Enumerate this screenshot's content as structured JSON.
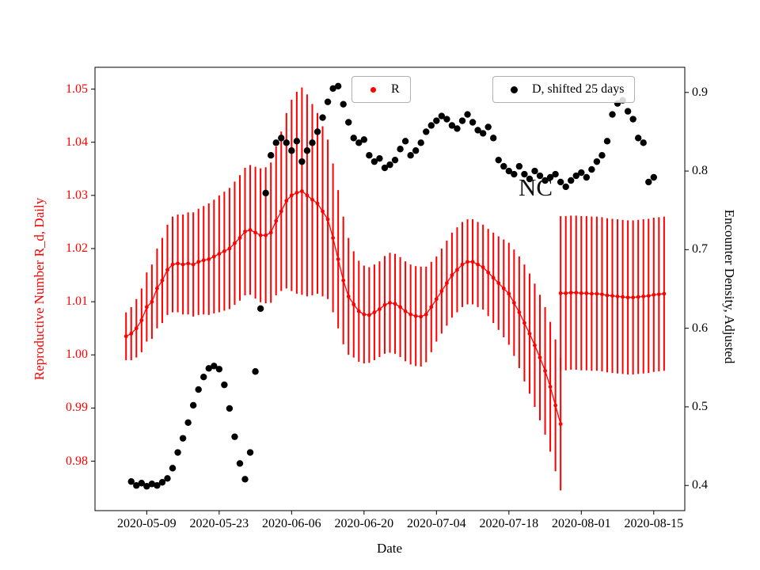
{
  "figure": {
    "background": "#ffffff"
  },
  "labels": {
    "x_axis": "Date",
    "y_left": "Reproductive Number R_d, Daily",
    "y_right": "Encounter Density, Adjusted"
  },
  "annotation": {
    "text": "NC"
  },
  "legends": [
    {
      "label": "R",
      "marker_color": "#ff0000"
    },
    {
      "label": "D, shifted 25 days",
      "marker_color": "#000000"
    }
  ],
  "chart_data": {
    "type": "scatter",
    "title": "",
    "xlabel": "Date",
    "ylabel_left": "Reproductive Number R_d, Daily",
    "ylabel_right": "Encounter Density, Adjusted",
    "grid": false,
    "legend_position": "upper center, two boxes",
    "x_ticks": [
      "2020-05-09",
      "2020-05-23",
      "2020-06-06",
      "2020-06-20",
      "2020-07-04",
      "2020-07-18",
      "2020-08-01",
      "2020-08-15"
    ],
    "y_ticks_left": [
      "0.98",
      "0.99",
      "1.00",
      "1.01",
      "1.02",
      "1.03",
      "1.04",
      "1.05"
    ],
    "y_ticks_right": [
      "0.4",
      "0.5",
      "0.6",
      "0.7",
      "0.8",
      "0.9"
    ],
    "xlim": [
      "2020-04-29",
      "2020-08-21"
    ],
    "ylim_left": [
      0.9707,
      1.0541
    ],
    "ylim_right": [
      0.368,
      0.932
    ],
    "series": [
      {
        "name": "R",
        "type": "errorbar",
        "axis": "left",
        "color": "#ff0000",
        "segments": [
          {
            "start_date": "2020-05-05",
            "freq": "daily",
            "values": [
              1.0035,
              1.004,
              1.005,
              1.0065,
              1.009,
              1.01,
              1.0125,
              1.014,
              1.016,
              1.017,
              1.0172,
              1.017,
              1.0172,
              1.017,
              1.0175,
              1.0178,
              1.018,
              1.0185,
              1.019,
              1.0195,
              1.02,
              1.021,
              1.022,
              1.0232,
              1.0235,
              1.023,
              1.0225,
              1.0225,
              1.023,
              1.0252,
              1.027,
              1.029,
              1.03,
              1.0305,
              1.0308,
              1.03,
              1.0292,
              1.0285,
              1.027,
              1.0255,
              1.022,
              1.018,
              1.014,
              1.011,
              1.0095,
              1.0082,
              1.0076,
              1.0075,
              1.008,
              1.0086,
              1.0094,
              1.0098,
              1.0096,
              1.009,
              1.0082,
              1.0076,
              1.0073,
              1.0072,
              1.0076,
              1.009,
              1.0105,
              1.012,
              1.0135,
              1.015,
              1.016,
              1.017,
              1.0175,
              1.0175,
              1.017,
              1.0165,
              1.0155,
              1.0145,
              1.0135,
              1.0125,
              1.0115,
              1.0098,
              1.008,
              1.006,
              1.004,
              1.0018,
              0.9995,
              0.997,
              0.994,
              0.9905,
              0.987
            ],
            "errors": [
              0.0045,
              0.005,
              0.0055,
              0.006,
              0.0065,
              0.007,
              0.0075,
              0.008,
              0.0085,
              0.009,
              0.0092,
              0.0094,
              0.0096,
              0.0098,
              0.01,
              0.0102,
              0.0105,
              0.0107,
              0.011,
              0.0112,
              0.0114,
              0.0116,
              0.0118,
              0.012,
              0.0122,
              0.0124,
              0.0126,
              0.0128,
              0.0132,
              0.014,
              0.015,
              0.0165,
              0.018,
              0.019,
              0.0195,
              0.019,
              0.018,
              0.017,
              0.016,
              0.015,
              0.014,
              0.013,
              0.012,
              0.011,
              0.01,
              0.0095,
              0.0092,
              0.009,
              0.009,
              0.009,
              0.0092,
              0.0094,
              0.0094,
              0.0094,
              0.0094,
              0.0094,
              0.0094,
              0.0094,
              0.009,
              0.0085,
              0.008,
              0.008,
              0.008,
              0.008,
              0.008,
              0.008,
              0.008,
              0.008,
              0.008,
              0.008,
              0.0082,
              0.0085,
              0.0088,
              0.0092,
              0.0096,
              0.01,
              0.0105,
              0.011,
              0.0113,
              0.0116,
              0.0118,
              0.012,
              0.0122,
              0.0124,
              0.0125
            ]
          },
          {
            "start_date": "2020-07-28",
            "freq": "daily",
            "values": [
              1.0116,
              1.0116,
              1.0117,
              1.0117,
              1.0116,
              1.0116,
              1.0115,
              1.0115,
              1.0114,
              1.0112,
              1.0111,
              1.011,
              1.0109,
              1.0108,
              1.0108,
              1.0109,
              1.011,
              1.0111,
              1.0113,
              1.0114,
              1.0115
            ],
            "errors": 0.0145
          }
        ]
      },
      {
        "name": "D, shifted 25 days",
        "type": "scatter",
        "axis": "right",
        "color": "#000000",
        "start_date": "2020-05-06",
        "freq": "daily",
        "values": [
          0.405,
          0.4,
          0.403,
          0.399,
          0.402,
          0.4,
          0.404,
          0.409,
          0.422,
          0.442,
          0.46,
          0.48,
          0.502,
          0.522,
          0.538,
          0.549,
          0.552,
          0.548,
          0.528,
          0.498,
          0.462,
          0.428,
          0.408,
          0.442,
          0.545,
          0.625,
          0.772,
          0.82,
          0.836,
          0.842,
          0.836,
          0.826,
          0.838,
          0.812,
          0.826,
          0.836,
          0.85,
          0.868,
          0.888,
          0.905,
          0.908,
          0.885,
          0.862,
          0.842,
          0.836,
          0.84,
          0.82,
          0.812,
          0.816,
          0.804,
          0.808,
          0.814,
          0.828,
          0.838,
          0.82,
          0.826,
          0.836,
          0.85,
          0.858,
          0.864,
          0.87,
          0.866,
          0.858,
          0.854,
          0.864,
          0.872,
          0.862,
          0.852,
          0.848,
          0.856,
          0.842,
          0.814,
          0.806,
          0.8,
          0.796,
          0.806,
          0.796,
          0.79,
          0.8,
          0.794,
          0.788,
          0.792,
          0.796,
          0.786,
          0.78,
          0.788,
          0.794,
          0.798,
          0.792,
          0.802,
          0.812,
          0.82,
          0.838,
          0.872,
          0.886,
          0.89,
          0.876,
          0.866,
          0.842,
          0.836,
          0.786,
          0.792
        ],
        "annotation": "NC"
      }
    ]
  }
}
